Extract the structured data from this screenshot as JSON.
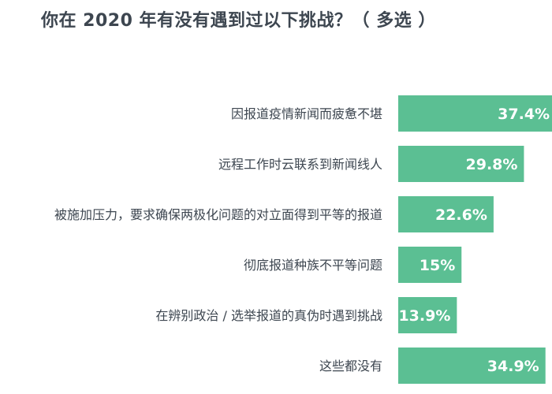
{
  "chart_data": {
    "type": "bar",
    "orientation": "horizontal",
    "title": "你在 2020 年有没有遇到过以下挑战？（ 多选 ）",
    "categories": [
      "因报道疫情新闻而疲惫不堪",
      "远程工作时云联系到新闻线人",
      "被施加压力，要求确保两极化问题的对立面得到平等的报道",
      "彻底报道种族不平等问题",
      "在辨别政治 / 选举报道的真伪时遇到挑战",
      "这些都没有"
    ],
    "values": [
      37.4,
      29.8,
      22.6,
      15,
      13.9,
      34.9
    ],
    "value_labels": [
      "37.4%",
      "29.8%",
      "22.6%",
      "15%",
      "13.9%",
      "34.9%"
    ],
    "bar_color": "#5bbf93",
    "label_color": "#3d4650",
    "grid": false,
    "legend": "none"
  }
}
